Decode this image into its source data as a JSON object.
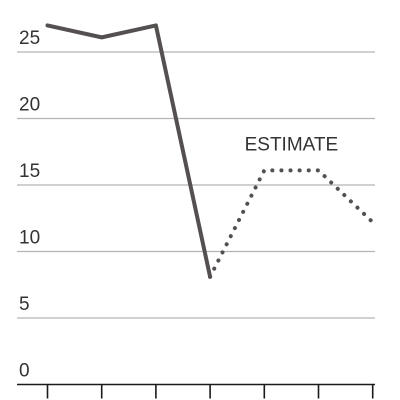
{
  "chart_data": {
    "type": "line",
    "title": "",
    "xlabel": "",
    "ylabel": "",
    "x": [
      1,
      2,
      3,
      4,
      5,
      6,
      7
    ],
    "ylim": [
      0,
      27
    ],
    "yticks": [
      0,
      5,
      10,
      15,
      20,
      25
    ],
    "grid": true,
    "series": [
      {
        "style": "solid",
        "x": [
          1,
          2,
          3,
          4
        ],
        "values": [
          27,
          26.1,
          27,
          8.1
        ]
      },
      {
        "style": "dotted",
        "x": [
          4,
          5,
          6,
          7
        ],
        "values": [
          8.1,
          16.1,
          16.1,
          12.2
        ]
      }
    ],
    "annotations": [
      {
        "text": "ESTIMATE",
        "x": 5.5,
        "y": 17.6
      }
    ],
    "colors": {
      "line": "#555050",
      "grid": "#b3b3b3",
      "axis": "#1a1a1a"
    }
  }
}
